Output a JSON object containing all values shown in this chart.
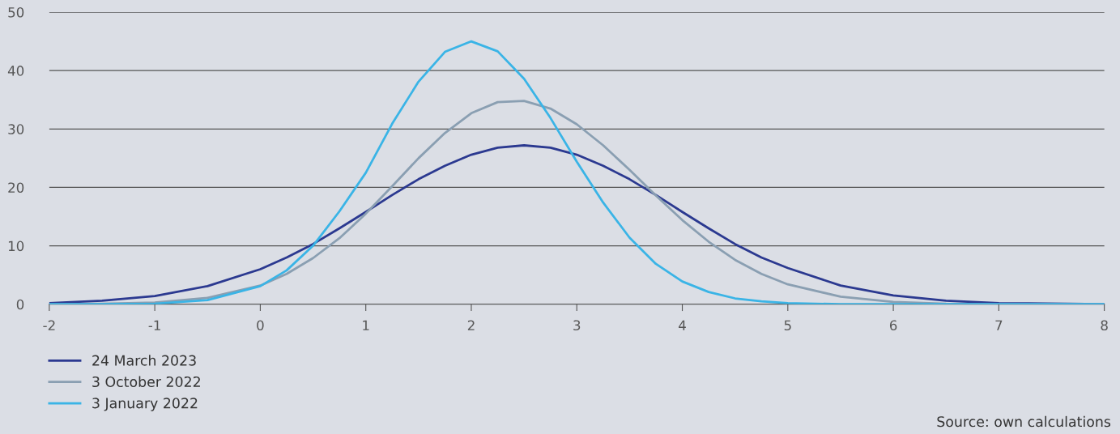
{
  "chart_data": {
    "type": "line",
    "x": [
      -2,
      -1.5,
      -1,
      -0.5,
      0,
      0.25,
      0.5,
      0.75,
      1,
      1.25,
      1.5,
      1.75,
      2,
      2.25,
      2.5,
      2.75,
      3,
      3.25,
      3.5,
      3.75,
      4,
      4.25,
      4.5,
      4.75,
      5,
      5.5,
      6,
      6.5,
      7,
      7.5,
      8
    ],
    "series": [
      {
        "name": "24 March 2023",
        "color": "#2b3990",
        "x": [
          -2,
          -1.5,
          -1,
          -0.5,
          0,
          0.25,
          0.5,
          0.75,
          1,
          1.25,
          1.5,
          1.75,
          2,
          2.25,
          2.5,
          2.75,
          3,
          3.25,
          3.5,
          3.75,
          4,
          4.25,
          4.5,
          4.75,
          5,
          5.5,
          6,
          6.5,
          7,
          8
        ],
        "values": [
          0.2,
          0.6,
          1.4,
          3.1,
          6.0,
          8.0,
          10.3,
          13.0,
          15.8,
          18.7,
          21.4,
          23.7,
          25.6,
          26.8,
          27.2,
          26.8,
          25.6,
          23.7,
          21.4,
          18.7,
          15.8,
          13.0,
          10.3,
          8.0,
          6.2,
          3.2,
          1.5,
          0.6,
          0.2,
          0.0
        ]
      },
      {
        "name": "3 October 2022",
        "color": "#8a9fb2",
        "values": [
          0,
          0.1,
          0.3,
          1.1,
          3.2,
          5.2,
          7.9,
          11.3,
          15.5,
          20.2,
          25.0,
          29.3,
          32.7,
          34.6,
          34.8,
          33.5,
          30.8,
          27.2,
          23.0,
          18.6,
          14.4,
          10.7,
          7.6,
          5.2,
          3.4,
          1.3,
          0.4,
          0.1,
          0,
          0,
          0
        ]
      },
      {
        "name": "3 January 2022",
        "color": "#3ab4e6",
        "values": [
          0,
          0,
          0.1,
          0.7,
          3.1,
          5.8,
          10.0,
          15.9,
          22.5,
          30.9,
          38.1,
          43.2,
          45.0,
          43.3,
          38.6,
          31.9,
          24.4,
          17.4,
          11.4,
          6.9,
          3.9,
          2.1,
          1.0,
          0.5,
          0.2,
          0,
          0,
          0,
          0,
          0,
          0
        ]
      }
    ],
    "xlim": [
      -2,
      8
    ],
    "xticks": [
      -2,
      -1,
      0,
      1,
      2,
      3,
      4,
      5,
      6,
      7,
      8
    ],
    "ylim": [
      0,
      50
    ],
    "yticks": [
      0,
      10,
      20,
      30,
      40,
      50
    ],
    "grid": "y",
    "legend": "bottom left",
    "marker": "none",
    "line_style": "solid",
    "annotations": [
      "Source: own calculations"
    ]
  }
}
